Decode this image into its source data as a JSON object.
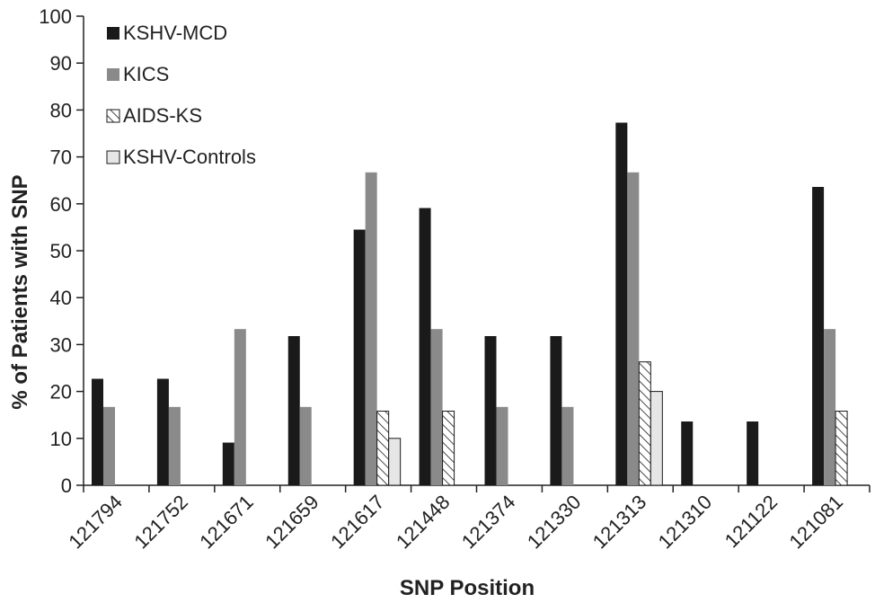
{
  "chart_data": {
    "type": "bar",
    "title": "",
    "xlabel": "SNP Position",
    "ylabel": "% of Patients with SNP",
    "ylim": [
      0,
      100
    ],
    "yticks": [
      0,
      10,
      20,
      30,
      40,
      50,
      60,
      70,
      80,
      90,
      100
    ],
    "grid": false,
    "legend_position": "top-left",
    "categories": [
      "121794",
      "121752",
      "121671",
      "121659",
      "121617",
      "121448",
      "121374",
      "121330",
      "121313",
      "121310",
      "121122",
      "121081"
    ],
    "series": [
      {
        "name": "KSHV-MCD",
        "color": "#1a1a1a",
        "pattern": "solid",
        "values": [
          22.7,
          22.7,
          9.1,
          31.8,
          54.5,
          59.1,
          31.8,
          31.8,
          77.3,
          13.6,
          13.6,
          63.6
        ]
      },
      {
        "name": "KICS",
        "color": "#8a8a8a",
        "pattern": "solid",
        "values": [
          16.7,
          16.7,
          33.3,
          16.7,
          66.7,
          33.3,
          16.7,
          16.7,
          66.7,
          0,
          0,
          33.3
        ]
      },
      {
        "name": "AIDS-KS",
        "color": "#ffffff",
        "pattern": "hatch",
        "values": [
          0,
          0,
          0,
          0,
          15.8,
          15.8,
          0,
          0,
          26.3,
          0,
          0,
          15.8
        ]
      },
      {
        "name": "KSHV-Controls",
        "color": "#e6e6e6",
        "pattern": "solid",
        "values": [
          0,
          0,
          0,
          0,
          10,
          0,
          0,
          0,
          20,
          0,
          0,
          0
        ]
      }
    ]
  }
}
